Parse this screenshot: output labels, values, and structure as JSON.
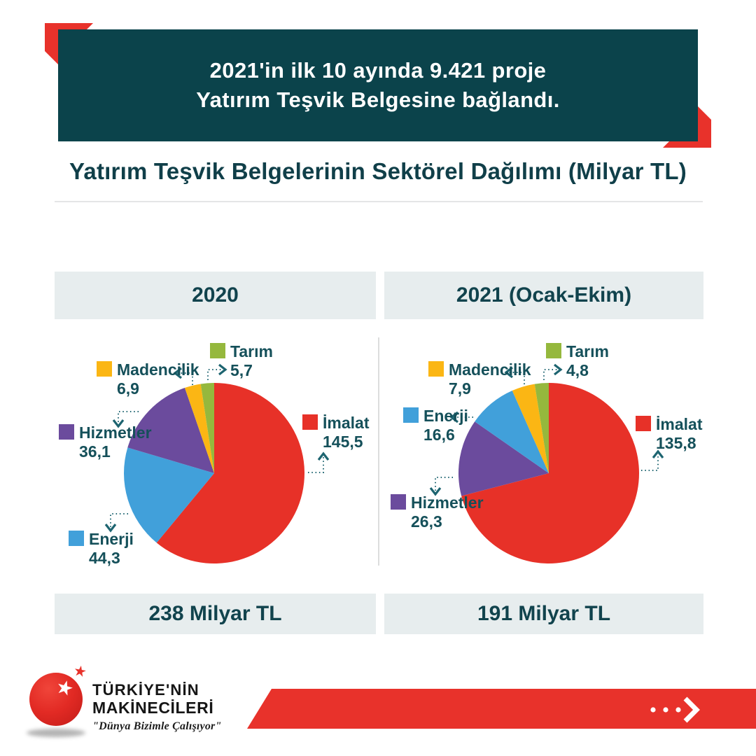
{
  "banner": {
    "line1": "2021'in ilk 10 ayında 9.421 proje",
    "line2": "Yatırım Teşvik Belgesine bağlandı."
  },
  "subtitle": "Yatırım Teşvik Belgelerinin Sektörel Dağılımı (Milyar TL)",
  "colors": {
    "banner_teal": "#0b434b",
    "accent_red": "#e8322b",
    "text_teal": "#15505a",
    "panel_gray": "#e7edee",
    "leader_teal": "#1d6470"
  },
  "chart_data": [
    {
      "type": "pie",
      "panel_header": "2020",
      "total_label": "238 Milyar TL",
      "unit": "Milyar TL",
      "direction": "clockwise-from-top",
      "slices": [
        {
          "label": "İmalat",
          "value": 145.5,
          "display": "145,5",
          "color": "#e73128"
        },
        {
          "label": "Enerji",
          "value": 44.3,
          "display": "44,3",
          "color": "#41a0da"
        },
        {
          "label": "Hizmetler",
          "value": 36.1,
          "display": "36,1",
          "color": "#6b4b9d"
        },
        {
          "label": "Madencilik",
          "value": 6.9,
          "display": "6,9",
          "color": "#fbb614"
        },
        {
          "label": "Tarım",
          "value": 5.7,
          "display": "5,7",
          "color": "#95b83d"
        }
      ]
    },
    {
      "type": "pie",
      "panel_header": "2021 (Ocak-Ekim)",
      "total_label": "191 Milyar TL",
      "unit": "Milyar TL",
      "direction": "clockwise-from-top",
      "slices": [
        {
          "label": "İmalat",
          "value": 135.8,
          "display": "135,8",
          "color": "#e73128"
        },
        {
          "label": "Hizmetler",
          "value": 26.3,
          "display": "26,3",
          "color": "#6b4b9d"
        },
        {
          "label": "Enerji",
          "value": 16.6,
          "display": "16,6",
          "color": "#41a0da"
        },
        {
          "label": "Madencilik",
          "value": 7.9,
          "display": "7,9",
          "color": "#fbb614"
        },
        {
          "label": "Tarım",
          "value": 4.8,
          "display": "4,8",
          "color": "#95b83d"
        }
      ]
    }
  ],
  "footer": {
    "brand_line1": "TÜRKİYE'NİN",
    "brand_line2": "MAKİNECİLERİ",
    "tagline": "\"Dünya Bizimle Çalışıyor\""
  },
  "icons": {
    "star": "★",
    "cta_arrow": "dots-chevron-right"
  }
}
